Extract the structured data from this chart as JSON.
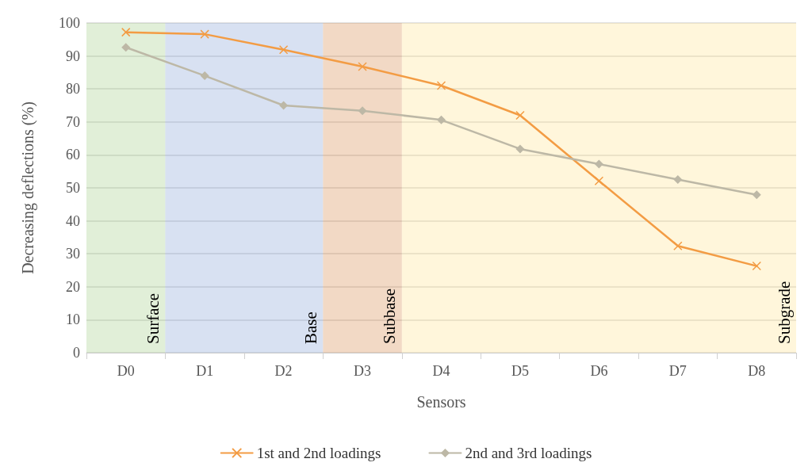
{
  "chart_data": {
    "type": "line",
    "xlabel": "Sensors",
    "ylabel": "Decreasing deflections (%)",
    "categories": [
      "D0",
      "D1",
      "D2",
      "D3",
      "D4",
      "D5",
      "D6",
      "D7",
      "D8"
    ],
    "series": [
      {
        "name": "1st and 2nd loadings",
        "color": "#f39c44",
        "marker": "cross",
        "values": [
          97.2,
          96.6,
          91.9,
          86.8,
          81,
          72,
          52.1,
          32.4,
          26.3
        ]
      },
      {
        "name": "2nd and 3rd loadings",
        "color": "#bdb8a6",
        "marker": "diamond",
        "values": [
          92.6,
          84,
          75,
          73.4,
          70.6,
          61.8,
          57.2,
          52.5,
          47.9
        ]
      }
    ],
    "ylim": [
      0,
      100
    ],
    "yticks": [
      0,
      10,
      20,
      30,
      40,
      50,
      60,
      70,
      80,
      90,
      100
    ],
    "grid": "y",
    "legend": "bottom",
    "bands": [
      {
        "axis": "x",
        "from": "D0",
        "to": "D0",
        "label": "Surface",
        "color": "#a9d08e"
      },
      {
        "axis": "x",
        "from": "D1",
        "to": "D2",
        "label": "Base",
        "color": "#8ea9db"
      },
      {
        "axis": "x",
        "from": "D3",
        "to": "D3",
        "label": "Subbase",
        "color": "#d9925a"
      },
      {
        "axis": "x",
        "from": "D4",
        "to": "D8",
        "label": "Subgrade",
        "color": "#ffe699"
      }
    ]
  }
}
